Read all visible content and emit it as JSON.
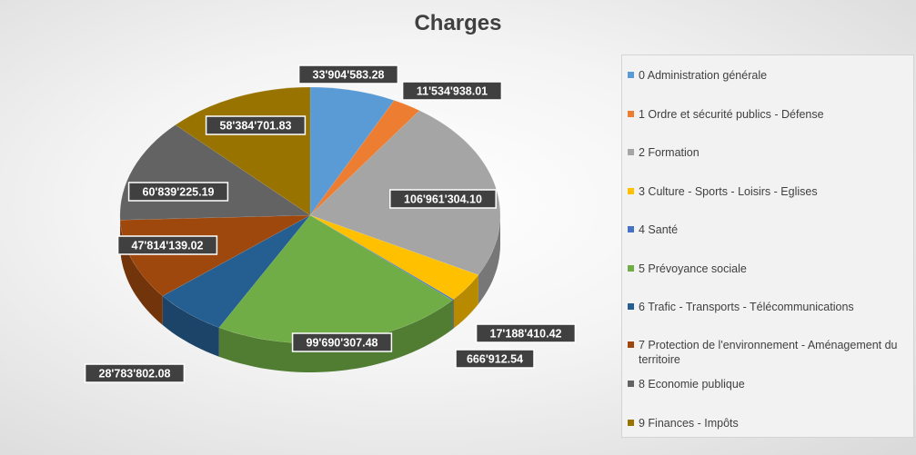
{
  "chart_data": {
    "type": "pie",
    "title": "Charges",
    "categories": [
      "0 Administration générale",
      "1 Ordre et sécurité publics - Défense",
      "2 Formation",
      "3 Culture - Sports - Loisirs - Eglises",
      "4 Santé",
      "5 Prévoyance sociale",
      "6 Trafic - Transports - Télécommunications",
      "7 Protection de l'environnement - Aménagement du territoire",
      "8 Economie publique",
      "9 Finances - Impôts"
    ],
    "values": [
      33904583.28,
      11534938.01,
      106961304.1,
      17188410.42,
      666912.54,
      99690307.48,
      28783802.08,
      47814139.02,
      60839225.19,
      58384701.83
    ],
    "data_labels": [
      "33'904'583.28",
      "11'534'938.01",
      "106'961'304.10",
      "17'188'410.42",
      "666'912.54",
      "99'690'307.48",
      "28'783'802.08",
      "47'814'139.02",
      "60'839'225.19",
      "58'384'701.83"
    ],
    "colors": [
      "#5b9bd5",
      "#ed7d31",
      "#a5a5a5",
      "#ffc000",
      "#4472c4",
      "#70ad47",
      "#255e91",
      "#9e480e",
      "#636363",
      "#997300"
    ],
    "legend_position": "right"
  }
}
